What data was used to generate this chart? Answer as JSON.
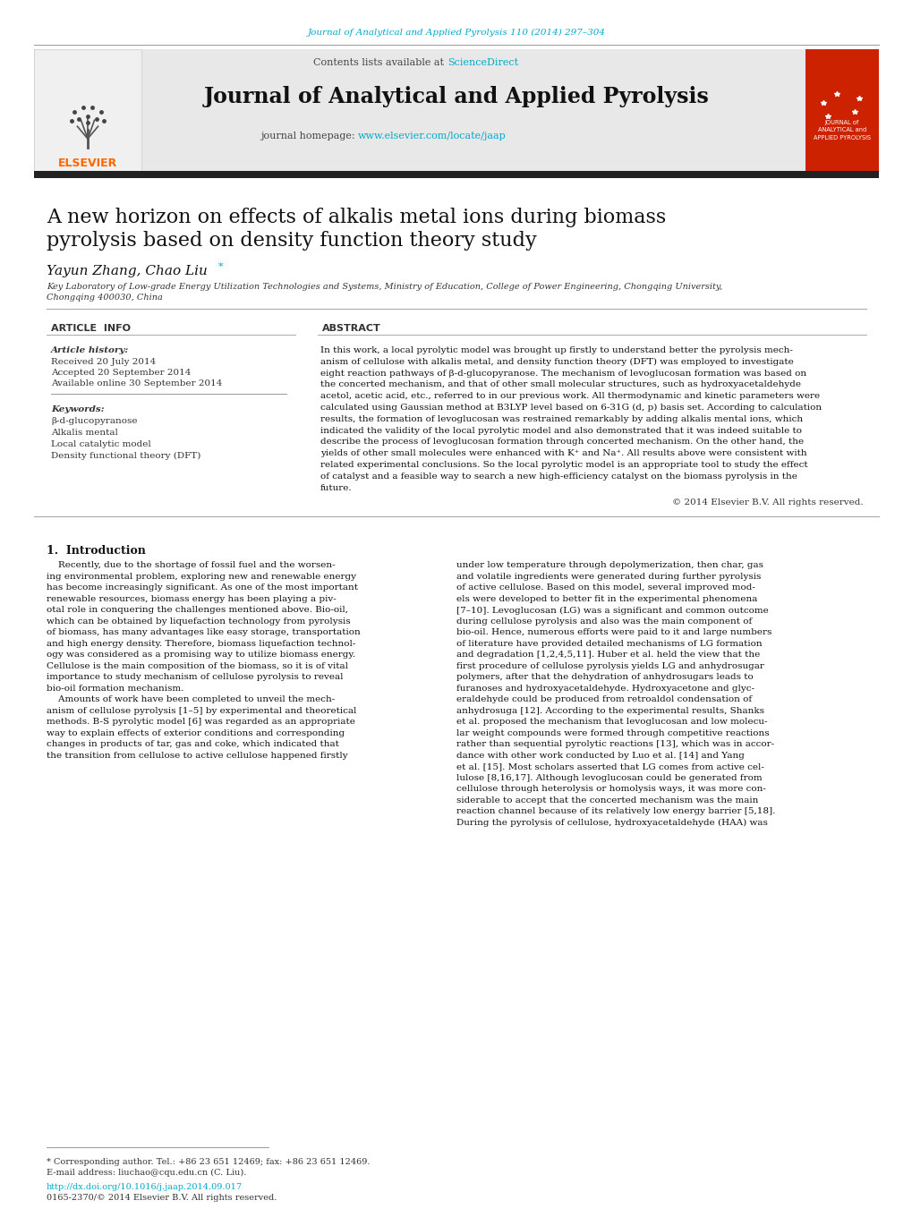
{
  "page_width": 10.2,
  "page_height": 13.51,
  "bg_color": "#ffffff",
  "journal_ref_text": "Journal of Analytical and Applied Pyrolysis 110 (2014) 297–304",
  "journal_ref_color": "#00aacc",
  "contents_text": "Contents lists available at ",
  "sciencedirect_text": "ScienceDirect",
  "sciencedirect_color": "#00aacc",
  "journal_name": "Journal of Analytical and Applied Pyrolysis",
  "journal_homepage_text": "journal homepage: ",
  "journal_homepage_url": "www.elsevier.com/locate/jaap",
  "journal_homepage_color": "#00aacc",
  "header_bg": "#e8e8e8",
  "dark_bar_color": "#222222",
  "elsevier_color": "#FF6600",
  "article_title_line1": "A new horizon on effects of alkalis metal ions during biomass",
  "article_title_line2": "pyrolysis based on density function theory study",
  "authors_text": "Yayun Zhang, Chao Liu",
  "affiliation_line1": "Key Laboratory of Low-grade Energy Utilization Technologies and Systems, Ministry of Education, College of Power Engineering, Chongqing University,",
  "affiliation_line2": "Chongqing 400030, China",
  "article_info_header": "ARTICLE  INFO",
  "abstract_header": "ABSTRACT",
  "article_history_label": "Article history:",
  "received": "Received 20 July 2014",
  "accepted": "Accepted 20 September 2014",
  "available": "Available online 30 September 2014",
  "keywords_label": "Keywords:",
  "keywords": [
    "β-d-glucopyranose",
    "Alkalis mental",
    "Local catalytic model",
    "Density functional theory (DFT)"
  ],
  "abstract_lines": [
    "In this work, a local pyrolytic model was brought up firstly to understand better the pyrolysis mech-",
    "anism of cellulose with alkalis metal, and density function theory (DFT) was employed to investigate",
    "eight reaction pathways of β-d-glucopyranose. The mechanism of levoglucosan formation was based on",
    "the concerted mechanism, and that of other small molecular structures, such as hydroxyacetaldehyde",
    "acetol, acetic acid, etc., referred to in our previous work. All thermodynamic and kinetic parameters were",
    "calculated using Gaussian method at B3LYP level based on 6-31G (d, p) basis set. According to calculation",
    "results, the formation of levoglucosan was restrained remarkably by adding alkalis mental ions, which",
    "indicated the validity of the local pyrolytic model and also demonstrated that it was indeed suitable to",
    "describe the process of levoglucosan formation through concerted mechanism. On the other hand, the",
    "yields of other small molecules were enhanced with K⁺ and Na⁺. All results above were consistent with",
    "related experimental conclusions. So the local pyrolytic model is an appropriate tool to study the effect",
    "of catalyst and a feasible way to search a new high-efficiency catalyst on the biomass pyrolysis in the",
    "future."
  ],
  "copyright": "© 2014 Elsevier B.V. All rights reserved.",
  "intro_header": "1.  Introduction",
  "intro_col1_lines": [
    "    Recently, due to the shortage of fossil fuel and the worsen-",
    "ing environmental problem, exploring new and renewable energy",
    "has become increasingly significant. As one of the most important",
    "renewable resources, biomass energy has been playing a piv-",
    "otal role in conquering the challenges mentioned above. Bio-oil,",
    "which can be obtained by liquefaction technology from pyrolysis",
    "of biomass, has many advantages like easy storage, transportation",
    "and high energy density. Therefore, biomass liquefaction technol-",
    "ogy was considered as a promising way to utilize biomass energy.",
    "Cellulose is the main composition of the biomass, so it is of vital",
    "importance to study mechanism of cellulose pyrolysis to reveal",
    "bio-oil formation mechanism.",
    "    Amounts of work have been completed to unveil the mech-",
    "anism of cellulose pyrolysis [1–5] by experimental and theoretical",
    "methods. B-S pyrolytic model [6] was regarded as an appropriate",
    "way to explain effects of exterior conditions and corresponding",
    "changes in products of tar, gas and coke, which indicated that",
    "the transition from cellulose to active cellulose happened firstly"
  ],
  "intro_col2_lines": [
    "under low temperature through depolymerization, then char, gas",
    "and volatile ingredients were generated during further pyrolysis",
    "of active cellulose. Based on this model, several improved mod-",
    "els were developed to better fit in the experimental phenomena",
    "[7–10]. Levoglucosan (LG) was a significant and common outcome",
    "during cellulose pyrolysis and also was the main component of",
    "bio-oil. Hence, numerous efforts were paid to it and large numbers",
    "of literature have provided detailed mechanisms of LG formation",
    "and degradation [1,2,4,5,11]. Huber et al. held the view that the",
    "first procedure of cellulose pyrolysis yields LG and anhydrosugar",
    "polymers, after that the dehydration of anhydrosugars leads to",
    "furanoses and hydroxyacetaldehyde. Hydroxyacetone and glyc-",
    "eraldehyde could be produced from retroaldol condensation of",
    "anhydrosuga [12]. According to the experimental results, Shanks",
    "et al. proposed the mechanism that levoglucosan and low molecu-",
    "lar weight compounds were formed through competitive reactions",
    "rather than sequential pyrolytic reactions [13], which was in accor-",
    "dance with other work conducted by Luo et al. [14] and Yang",
    "et al. [15]. Most scholars asserted that LG comes from active cel-",
    "lulose [8,16,17]. Although levoglucosan could be generated from",
    "cellulose through heterolysis or homolysis ways, it was more con-",
    "siderable to accept that the concerted mechanism was the main",
    "reaction channel because of its relatively low energy barrier [5,18].",
    "During the pyrolysis of cellulose, hydroxyacetaldehyde (HAA) was"
  ],
  "footnote_star": "* Corresponding author. Tel.: +86 23 651 12469; fax: +86 23 651 12469.",
  "footnote_email": "E-mail address: liuchao@cqu.edu.cn (C. Liu).",
  "doi_text": "http://dx.doi.org/10.1016/j.jaap.2014.09.017",
  "issn_text": "0165-2370/© 2014 Elsevier B.V. All rights reserved."
}
